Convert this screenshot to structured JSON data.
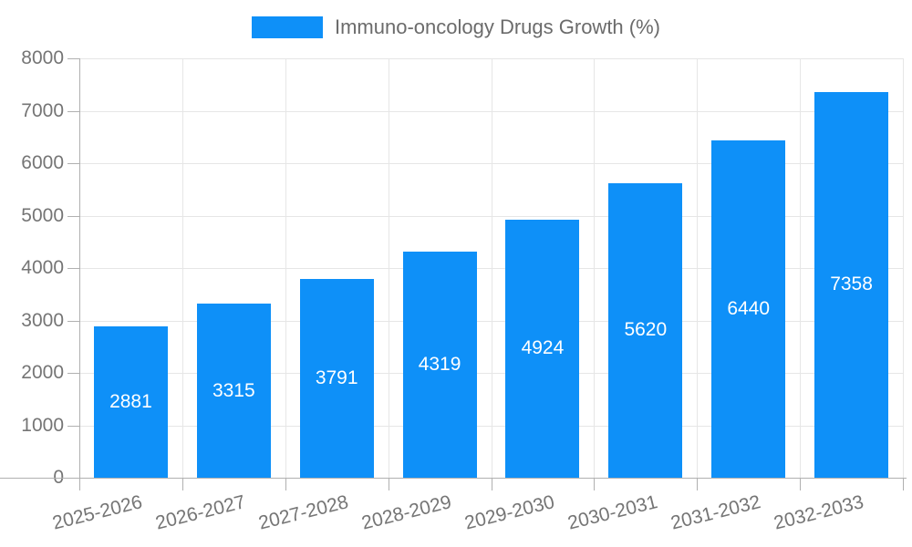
{
  "chart_data": {
    "type": "bar",
    "title": "",
    "legend": "Immuno-oncology Drugs Growth (%)",
    "legend_position": "top-center",
    "categories": [
      "2025-2026",
      "2026-2027",
      "2027-2028",
      "2028-2029",
      "2029-2030",
      "2030-2031",
      "2031-2032",
      "2032-2033"
    ],
    "values": [
      2881,
      3315,
      3791,
      4319,
      4924,
      5620,
      6440,
      7358
    ],
    "value_labels": [
      "2881",
      "3315",
      "3791",
      "4319",
      "4924",
      "5620",
      "6440",
      "7358"
    ],
    "xlabel": "",
    "ylabel": "",
    "ylim": [
      0,
      8000
    ],
    "y_ticks": [
      0,
      1000,
      2000,
      3000,
      4000,
      5000,
      6000,
      7000,
      8000
    ],
    "grid": true,
    "x_label_rotation_deg": -14,
    "colors": {
      "bar": "#0e90f8",
      "grid": "#e6e6e6",
      "axis": "#b0b0b0",
      "tick": "#b0b0b0",
      "tick_text": "#757575",
      "legend_text": "#6b6b6b",
      "value_label": "#ffffff",
      "background": "#ffffff"
    }
  }
}
